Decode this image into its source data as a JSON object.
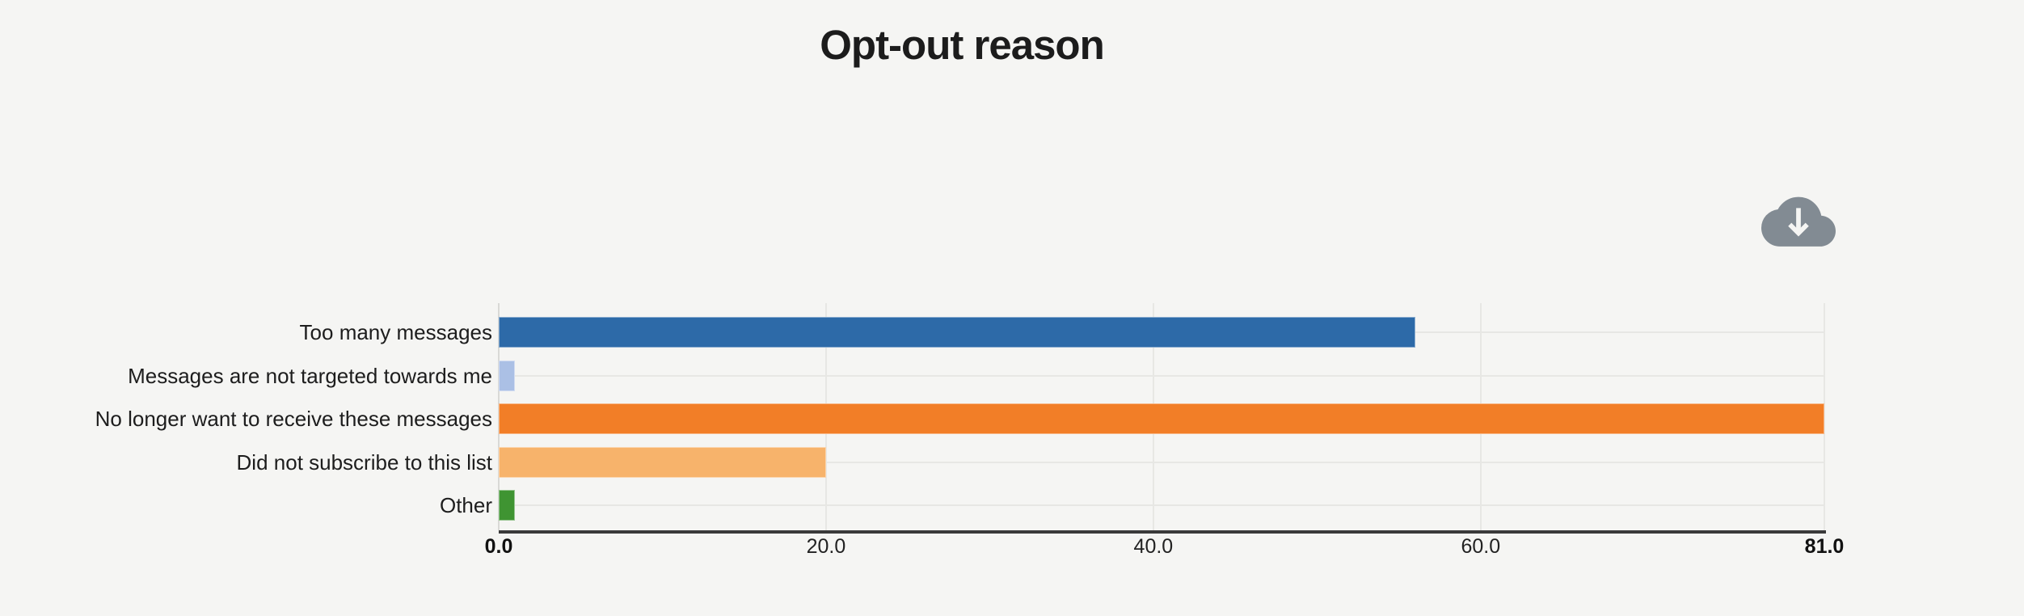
{
  "header": {
    "title": "Opt-out reason"
  },
  "toolbar": {
    "download_icon": "cloud-download-icon"
  },
  "chart_data": {
    "type": "bar",
    "orientation": "horizontal",
    "title": "Opt-out reason",
    "categories": [
      "Too many messages",
      "Messages are not targeted towards me",
      "No longer want to receive these messages",
      "Did not subscribe to this list",
      "Other"
    ],
    "values": [
      56,
      1,
      81,
      20,
      1
    ],
    "bar_colors": [
      "#2d6aa8",
      "#abc0e5",
      "#f27e27",
      "#f7b36b",
      "#3f9432"
    ],
    "xlim": [
      0,
      81
    ],
    "x_ticks": [
      0,
      20,
      40,
      60,
      81
    ],
    "x_tick_labels": [
      "0.0",
      "20.0",
      "40.0",
      "60.0",
      "81.0"
    ],
    "bold_tick_labels": [
      "0.0",
      "81.0"
    ],
    "grid": true,
    "legend": false
  },
  "style": {
    "background": "#f5f5f3",
    "text_color": "#1d1d1d",
    "axis_color": "#3a3a3a",
    "gridline_color": "#e7e7e4",
    "zero_line_color": "#d9d9d6",
    "icon_color": "#828b93"
  }
}
